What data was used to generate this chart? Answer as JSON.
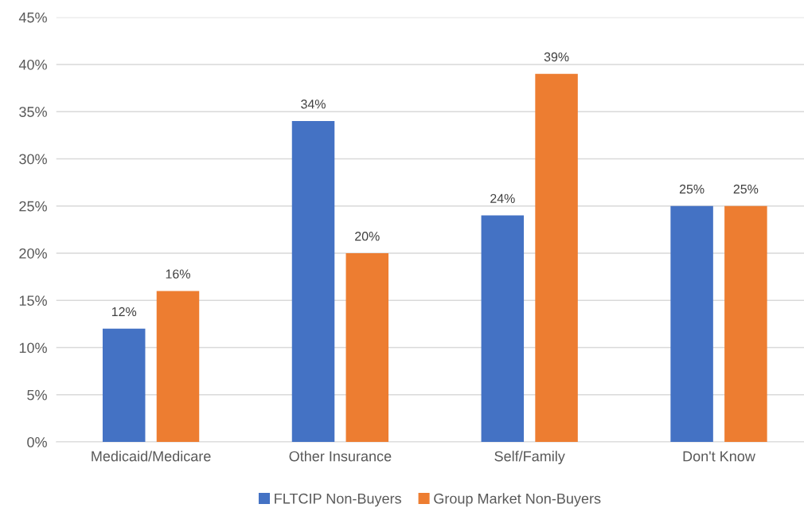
{
  "chart_data": {
    "type": "bar",
    "categories": [
      "Medicaid/Medicare",
      "Other Insurance",
      "Self/Family",
      "Don't Know"
    ],
    "series": [
      {
        "name": "FLTCIP Non-Buyers",
        "color": "#4472c4",
        "values": [
          12,
          34,
          24,
          25
        ],
        "value_labels": [
          "12%",
          "34%",
          "24%",
          "25%"
        ]
      },
      {
        "name": "Group Market Non-Buyers",
        "color": "#ed7d31",
        "values": [
          16,
          20,
          39,
          25
        ],
        "value_labels": [
          "16%",
          "20%",
          "39%",
          "25%"
        ]
      }
    ],
    "ylim": [
      0,
      45
    ],
    "yticks": [
      {
        "value": 0,
        "label": "0%"
      },
      {
        "value": 5,
        "label": "5%"
      },
      {
        "value": 10,
        "label": "10%"
      },
      {
        "value": 15,
        "label": "15%"
      },
      {
        "value": 20,
        "label": "20%"
      },
      {
        "value": 25,
        "label": "25%"
      },
      {
        "value": 30,
        "label": "30%"
      },
      {
        "value": 35,
        "label": "35%"
      },
      {
        "value": 40,
        "label": "40%"
      },
      {
        "value": 45,
        "label": "45%"
      }
    ],
    "grid": "y",
    "legend": "bottom"
  }
}
